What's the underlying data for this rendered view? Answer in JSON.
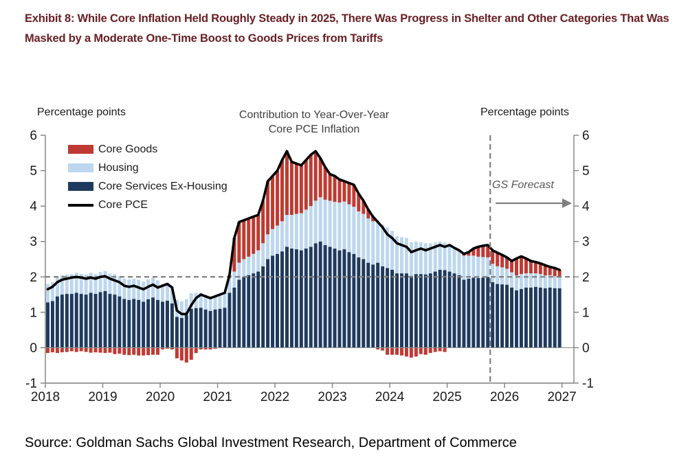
{
  "header": {
    "title": "Exhibit 8: While Core Inflation Held Roughly Steady in 2025, There Was Progress in Shelter and Other Categories That Was Masked by a Moderate One-Time Boost to Goods Prices from Tariffs"
  },
  "chart": {
    "axis_label_left": "Percentage points",
    "axis_label_right": "Percentage points",
    "title_line1": "Contribution to Year-Over-Year",
    "title_line2": "Core PCE Inflation",
    "forecast_label": "GS Forecast",
    "legend": [
      {
        "label": "Core Goods",
        "color": "#bf3a32",
        "type": "box"
      },
      {
        "label": "Housing",
        "color": "#bdd7ee",
        "type": "box"
      },
      {
        "label": "Core Services Ex-Housing",
        "color": "#1f3a5e",
        "type": "box"
      },
      {
        "label": "Core PCE",
        "color": "#000000",
        "type": "line"
      }
    ]
  },
  "chart_data": {
    "type": "bar",
    "subtype": "stacked-monthly-bars-with-line",
    "title": "Contribution to Year-Over-Year Core PCE Inflation",
    "ylabel": "Percentage points",
    "ylim": [
      -1,
      6
    ],
    "y_ticks": [
      -1,
      0,
      1,
      2,
      3,
      4,
      5,
      6
    ],
    "reference_line_y": 2,
    "x_start": "2018-01",
    "x_end": "2026-12",
    "x_tick_labels": [
      "2018",
      "2019",
      "2020",
      "2021",
      "2022",
      "2023",
      "2024",
      "2025",
      "2026",
      "2027"
    ],
    "forecast_start": "2025-10",
    "forecast_start_index": 93,
    "grid": false,
    "legend_position": "upper-left",
    "series": [
      {
        "name": "Core Services Ex-Housing",
        "role": "bar",
        "stack": 1,
        "color": "#1f3a5e",
        "values": [
          1.28,
          1.32,
          1.45,
          1.5,
          1.52,
          1.52,
          1.55,
          1.52,
          1.5,
          1.55,
          1.52,
          1.57,
          1.6,
          1.52,
          1.5,
          1.45,
          1.38,
          1.35,
          1.38,
          1.35,
          1.3,
          1.37,
          1.42,
          1.35,
          1.3,
          1.33,
          1.25,
          0.87,
          0.84,
          0.92,
          1.1,
          1.12,
          1.13,
          1.08,
          1.04,
          1.08,
          1.1,
          1.13,
          1.55,
          1.7,
          1.92,
          2.0,
          2.05,
          2.1,
          2.15,
          2.3,
          2.5,
          2.6,
          2.65,
          2.72,
          2.85,
          2.8,
          2.78,
          2.75,
          2.8,
          2.85,
          2.95,
          3.0,
          2.9,
          2.85,
          2.8,
          2.75,
          2.78,
          2.7,
          2.65,
          2.55,
          2.5,
          2.4,
          2.35,
          2.4,
          2.3,
          2.25,
          2.2,
          2.1,
          2.1,
          2.1,
          2.03,
          2.08,
          2.08,
          2.07,
          2.1,
          2.15,
          2.2,
          2.19,
          2.15,
          2.1,
          2.05,
          1.92,
          1.95,
          1.98,
          1.97,
          1.98,
          2.0,
          1.85,
          1.8,
          1.79,
          1.78,
          1.7,
          1.62,
          1.66,
          1.7,
          1.7,
          1.72,
          1.7,
          1.68,
          1.7,
          1.68,
          1.68
        ]
      },
      {
        "name": "Housing",
        "role": "bar",
        "stack": 2,
        "color": "#bdd7ee",
        "values": [
          0.52,
          0.53,
          0.55,
          0.55,
          0.55,
          0.56,
          0.57,
          0.56,
          0.57,
          0.57,
          0.56,
          0.57,
          0.57,
          0.57,
          0.58,
          0.57,
          0.57,
          0.58,
          0.57,
          0.57,
          0.57,
          0.56,
          0.56,
          0.55,
          0.5,
          0.5,
          0.5,
          0.48,
          0.47,
          0.45,
          0.44,
          0.43,
          0.42,
          0.42,
          0.41,
          0.4,
          0.4,
          0.4,
          0.42,
          0.45,
          0.48,
          0.5,
          0.52,
          0.55,
          0.6,
          0.65,
          0.7,
          0.75,
          0.8,
          0.85,
          0.9,
          0.95,
          1.0,
          1.05,
          1.1,
          1.15,
          1.2,
          1.25,
          1.28,
          1.3,
          1.32,
          1.35,
          1.35,
          1.35,
          1.33,
          1.3,
          1.28,
          1.25,
          1.22,
          1.2,
          1.18,
          1.15,
          1.1,
          1.05,
          1.02,
          1.0,
          0.95,
          0.92,
          0.9,
          0.88,
          0.85,
          0.82,
          0.8,
          0.78,
          0.75,
          0.72,
          0.7,
          0.68,
          0.65,
          0.62,
          0.6,
          0.58,
          0.55,
          0.52,
          0.5,
          0.48,
          0.45,
          0.43,
          0.42,
          0.42,
          0.4,
          0.4,
          0.38,
          0.38,
          0.36,
          0.35,
          0.34,
          0.33
        ]
      },
      {
        "name": "Core Goods",
        "role": "bar",
        "stack": 3,
        "color": "#bf3a32",
        "values": [
          -0.15,
          -0.13,
          -0.15,
          -0.13,
          -0.12,
          -0.1,
          -0.12,
          -0.1,
          -0.12,
          -0.14,
          -0.13,
          -0.14,
          -0.15,
          -0.14,
          -0.18,
          -0.17,
          -0.2,
          -0.21,
          -0.2,
          -0.22,
          -0.22,
          -0.21,
          -0.2,
          -0.2,
          -0.05,
          -0.03,
          -0.05,
          -0.3,
          -0.36,
          -0.42,
          -0.34,
          -0.15,
          -0.05,
          -0.05,
          -0.05,
          -0.03,
          0.0,
          0.02,
          0.08,
          0.95,
          1.15,
          1.1,
          1.08,
          1.05,
          1.0,
          1.2,
          1.5,
          1.5,
          1.55,
          1.73,
          1.8,
          1.5,
          1.42,
          1.35,
          1.4,
          1.45,
          1.4,
          1.1,
          0.92,
          0.75,
          0.73,
          0.65,
          0.57,
          0.6,
          0.62,
          0.5,
          0.37,
          0.25,
          0.13,
          -0.05,
          -0.08,
          -0.2,
          -0.2,
          -0.2,
          -0.22,
          -0.25,
          -0.28,
          -0.25,
          -0.18,
          -0.2,
          -0.15,
          -0.12,
          -0.1,
          -0.12,
          0.0,
          0.0,
          0.0,
          0.05,
          0.1,
          0.2,
          0.28,
          0.32,
          0.35,
          0.38,
          0.38,
          0.35,
          0.32,
          0.32,
          0.48,
          0.5,
          0.42,
          0.35,
          0.32,
          0.3,
          0.29,
          0.23,
          0.23,
          0.19
        ]
      },
      {
        "name": "Core PCE",
        "role": "line",
        "color": "#000000",
        "values": [
          1.65,
          1.72,
          1.85,
          1.92,
          1.95,
          1.98,
          2.0,
          1.98,
          1.95,
          1.98,
          1.95,
          2.0,
          2.02,
          1.95,
          1.9,
          1.85,
          1.75,
          1.72,
          1.75,
          1.7,
          1.65,
          1.72,
          1.78,
          1.7,
          1.75,
          1.8,
          1.7,
          1.05,
          0.95,
          0.95,
          1.2,
          1.4,
          1.5,
          1.45,
          1.4,
          1.45,
          1.5,
          1.55,
          2.05,
          3.1,
          3.55,
          3.6,
          3.65,
          3.7,
          3.75,
          4.15,
          4.7,
          4.85,
          5.0,
          5.3,
          5.55,
          5.25,
          5.2,
          5.15,
          5.3,
          5.45,
          5.55,
          5.35,
          5.1,
          4.9,
          4.85,
          4.75,
          4.7,
          4.65,
          4.6,
          4.35,
          4.15,
          3.9,
          3.7,
          3.55,
          3.4,
          3.2,
          3.1,
          2.95,
          2.9,
          2.85,
          2.7,
          2.75,
          2.8,
          2.75,
          2.8,
          2.85,
          2.9,
          2.85,
          2.9,
          2.82,
          2.75,
          2.65,
          2.7,
          2.8,
          2.85,
          2.88,
          2.9,
          2.75,
          2.68,
          2.62,
          2.55,
          2.45,
          2.52,
          2.58,
          2.52,
          2.45,
          2.42,
          2.38,
          2.33,
          2.28,
          2.25,
          2.2
        ]
      }
    ]
  },
  "footer": {
    "source": "Source: Goldman Sachs Global Investment Research, Department of Commerce"
  }
}
